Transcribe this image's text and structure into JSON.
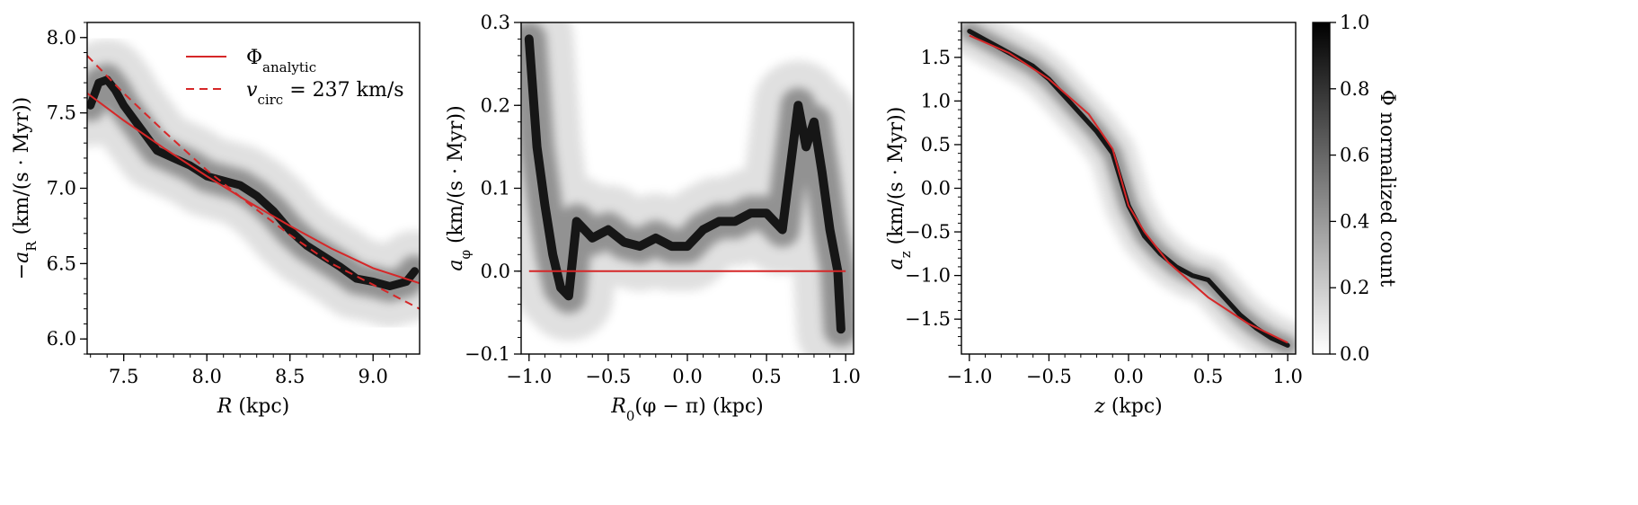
{
  "colors": {
    "analytic": "#d62728",
    "density": "#000000",
    "frame": "#000000"
  },
  "colorbar": {
    "label": "Φ normalized count",
    "range": [
      0,
      1
    ],
    "ticks": [
      "0.0",
      "0.2",
      "0.4",
      "0.6",
      "0.8",
      "1.0"
    ],
    "colormap": "gray_r"
  },
  "chart_data": [
    {
      "type": "heatmap",
      "panel": "radial",
      "xlabel": {
        "main": "R",
        "unit": " (kpc)"
      },
      "ylabel": {
        "main": "−a",
        "sub": "R",
        "unit": " (km/(s · Myr))"
      },
      "xlim": [
        7.28,
        9.28
      ],
      "ylim": [
        5.9,
        8.1
      ],
      "xticks": [
        7.5,
        8.0,
        8.5,
        9.0
      ],
      "xticklabels": [
        "7.5",
        "8.0",
        "8.5",
        "9.0"
      ],
      "yticks": [
        6.0,
        6.5,
        7.0,
        7.5,
        8.0
      ],
      "yticklabels": [
        "6.0",
        "6.5",
        "7.0",
        "7.5",
        "8.0"
      ],
      "legend": {
        "placement": "top-center",
        "entries": [
          {
            "style": "solid",
            "label": "Φ",
            "sub": "analytic",
            "suffix": ""
          },
          {
            "style": "dashed",
            "label": "v",
            "sub": "circ",
            "suffix": " = 237 km/s"
          }
        ]
      },
      "density_ridge": {
        "x": [
          7.3,
          7.35,
          7.4,
          7.45,
          7.5,
          7.6,
          7.7,
          7.8,
          7.9,
          8.0,
          8.1,
          8.2,
          8.3,
          8.4,
          8.5,
          8.6,
          8.7,
          8.8,
          8.9,
          9.0,
          9.1,
          9.2,
          9.25
        ],
        "y": [
          7.55,
          7.7,
          7.72,
          7.65,
          7.55,
          7.4,
          7.25,
          7.2,
          7.15,
          7.08,
          7.05,
          7.02,
          6.95,
          6.85,
          6.72,
          6.62,
          6.55,
          6.48,
          6.4,
          6.38,
          6.35,
          6.38,
          6.45
        ],
        "spread": 0.06
      },
      "lines": [
        {
          "style": "solid",
          "x": [
            7.28,
            7.5,
            7.75,
            8.0,
            8.25,
            8.5,
            8.75,
            9.0,
            9.28
          ],
          "y": [
            7.63,
            7.45,
            7.26,
            7.08,
            6.91,
            6.75,
            6.6,
            6.47,
            6.37
          ]
        },
        {
          "style": "dashed",
          "x": [
            7.28,
            7.5,
            7.75,
            8.0,
            8.25,
            8.5,
            8.75,
            9.0,
            9.28
          ],
          "y": [
            7.88,
            7.63,
            7.37,
            7.12,
            6.9,
            6.69,
            6.5,
            6.36,
            6.2
          ]
        }
      ]
    },
    {
      "type": "heatmap",
      "panel": "azimuthal",
      "xlabel": {
        "main": "R",
        "sub": "0",
        "unit": "(φ − π) (kpc)"
      },
      "ylabel": {
        "main": "a",
        "sub": "φ",
        "unit": " (km/(s · Myr))"
      },
      "xlim": [
        -1.05,
        1.05
      ],
      "ylim": [
        -0.1,
        0.3
      ],
      "xticks": [
        -1.0,
        -0.5,
        0.0,
        0.5,
        1.0
      ],
      "xticklabels": [
        "−1.0",
        "−0.5",
        "0.0",
        "0.5",
        "1.0"
      ],
      "yticks": [
        -0.1,
        0.0,
        0.1,
        0.2,
        0.3
      ],
      "yticklabels": [
        "−0.1",
        "0.0",
        "0.1",
        "0.2",
        "0.3"
      ],
      "density_ridge": {
        "x": [
          -1.0,
          -0.95,
          -0.9,
          -0.85,
          -0.8,
          -0.75,
          -0.7,
          -0.6,
          -0.5,
          -0.4,
          -0.3,
          -0.2,
          -0.1,
          0.0,
          0.1,
          0.2,
          0.3,
          0.4,
          0.5,
          0.55,
          0.6,
          0.7,
          0.75,
          0.8,
          0.85,
          0.9,
          0.95,
          0.97
        ],
        "y": [
          0.28,
          0.15,
          0.08,
          0.02,
          -0.02,
          -0.03,
          0.06,
          0.04,
          0.05,
          0.035,
          0.03,
          0.04,
          0.03,
          0.03,
          0.05,
          0.06,
          0.06,
          0.07,
          0.07,
          0.06,
          0.05,
          0.2,
          0.15,
          0.18,
          0.12,
          0.05,
          0.0,
          -0.07
        ],
        "spread": 0.012
      },
      "lines": [
        {
          "style": "solid",
          "x": [
            -1.0,
            1.0
          ],
          "y": [
            0.0,
            0.0
          ]
        }
      ]
    },
    {
      "type": "heatmap",
      "panel": "vertical",
      "xlabel": {
        "main": "z",
        "unit": " (kpc)"
      },
      "ylabel": {
        "main": "a",
        "sub": "z",
        "unit": " (km/(s · Myr))"
      },
      "xlim": [
        -1.05,
        1.05
      ],
      "ylim": [
        -1.9,
        1.9
      ],
      "xticks": [
        -1.0,
        -0.5,
        0.0,
        0.5,
        1.0
      ],
      "xticklabels": [
        "−1.0",
        "−0.5",
        "0.0",
        "0.5",
        "1.0"
      ],
      "yticks": [
        -1.5,
        -1.0,
        -0.5,
        0.0,
        0.5,
        1.0,
        1.5
      ],
      "yticklabels": [
        "−1.5",
        "−1.0",
        "−0.5",
        "0.0",
        "0.5",
        "1.0",
        "1.5"
      ],
      "density_ridge": {
        "x": [
          -1.0,
          -0.9,
          -0.8,
          -0.7,
          -0.6,
          -0.5,
          -0.4,
          -0.3,
          -0.2,
          -0.1,
          0.0,
          0.1,
          0.2,
          0.3,
          0.4,
          0.5,
          0.6,
          0.7,
          0.8,
          0.9,
          1.0
        ],
        "y": [
          1.8,
          1.7,
          1.6,
          1.5,
          1.4,
          1.25,
          1.05,
          0.85,
          0.65,
          0.4,
          -0.2,
          -0.55,
          -0.75,
          -0.9,
          -1.0,
          -1.05,
          -1.25,
          -1.45,
          -1.6,
          -1.72,
          -1.8
        ],
        "spread": 0.06
      },
      "lines": [
        {
          "style": "solid",
          "x": [
            -1.0,
            -0.75,
            -0.5,
            -0.25,
            -0.1,
            0.0,
            0.1,
            0.25,
            0.5,
            0.75,
            1.0
          ],
          "y": [
            1.75,
            1.55,
            1.25,
            0.85,
            0.45,
            -0.2,
            -0.5,
            -0.85,
            -1.25,
            -1.55,
            -1.77
          ]
        }
      ]
    }
  ]
}
